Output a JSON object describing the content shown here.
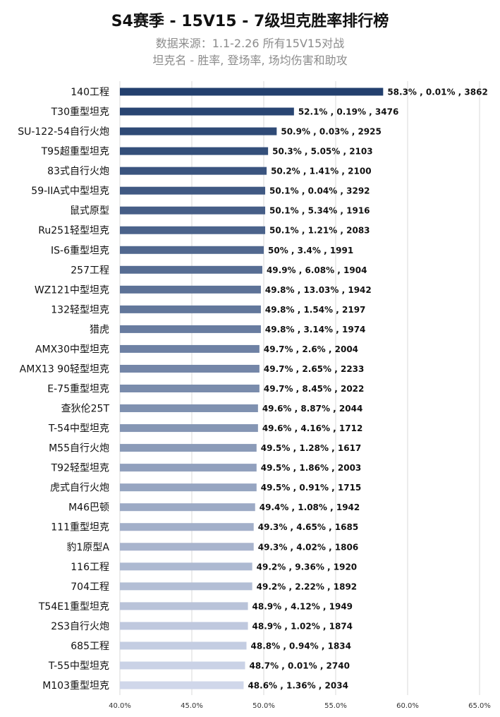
{
  "chart_data": {
    "type": "bar",
    "orientation": "horizontal",
    "title": "S4赛季 - 15V15 - 7级坦克胜率排行榜",
    "subtitle_lines": [
      "数据来源：1.1-2.26 所有15V15对战",
      "坦克名 - 胜率, 登场率, 场均伤害和助攻"
    ],
    "xlim": [
      40,
      65
    ],
    "x_ticks": [
      40,
      45,
      50,
      55,
      60,
      65
    ],
    "x_tick_labels": [
      "40.0%",
      "45.0%",
      "50.0%",
      "55.0%",
      "60.0%",
      "65.0%"
    ],
    "grid": "vertical",
    "categories": [
      "140工程",
      "T30重型坦克",
      "SU-122-54自行火炮",
      "T95超重型坦克",
      "83式自行火炮",
      "59-IIA式中型坦克",
      "鼠式原型",
      "Ru251轻型坦克",
      "IS-6重型坦克",
      "257工程",
      "WZ121中型坦克",
      "132轻型坦克",
      "猎虎",
      "AMX30中型坦克",
      "AMX13 90轻型坦克",
      "E-75重型坦克",
      "查狄伦25T",
      "T-54中型坦克",
      "M55自行火炮",
      "T92轻型坦克",
      "虎式自行火炮",
      "M46巴顿",
      "111重型坦克",
      "豹1原型A",
      "116工程",
      "704工程",
      "T54E1重型坦克",
      "2S3自行火炮",
      "685工程",
      "T-55中型坦克",
      "M103重型坦克"
    ],
    "values": [
      58.3,
      52.1,
      50.9,
      50.3,
      50.2,
      50.1,
      50.1,
      50.1,
      50.0,
      49.9,
      49.8,
      49.8,
      49.8,
      49.7,
      49.7,
      49.7,
      49.6,
      49.6,
      49.5,
      49.5,
      49.5,
      49.4,
      49.3,
      49.3,
      49.2,
      49.2,
      48.9,
      48.9,
      48.8,
      48.7,
      48.6
    ],
    "data_labels": [
      "58.3% , 0.01% , 3862",
      "52.1% , 0.19% , 3476",
      "50.9% , 0.03% , 2925",
      "50.3% , 5.05% , 2103",
      "50.2% , 1.41% , 2100",
      "50.1% , 0.04% , 3292",
      "50.1% , 5.34% , 1916",
      "50.1% , 1.21% , 2083",
      "50% , 3.4% , 1991",
      "49.9% , 6.08% , 1904",
      "49.8% , 13.03% , 1942",
      "49.8% , 1.54% , 2197",
      "49.8% , 3.14% , 1974",
      "49.7% , 2.6% , 2004",
      "49.7% , 2.65% , 2233",
      "49.7% , 8.45% , 2022",
      "49.6% , 8.87% , 2044",
      "49.6% , 4.16% , 1712",
      "49.5% , 1.28% , 1617",
      "49.5% , 1.86% , 2003",
      "49.5% , 0.91% , 1715",
      "49.4% , 1.08% , 1942",
      "49.3% , 4.65% , 1685",
      "49.3% , 4.02% , 1806",
      "49.2% , 9.36% , 1920",
      "49.2% , 2.22% , 1892",
      "48.9% , 4.12% , 1949",
      "48.9% , 1.02% , 1874",
      "48.8% , 0.94% , 1834",
      "48.7% , 0.01% , 2740",
      "48.6% , 1.36% , 2034"
    ],
    "colors": {
      "bar_start": "#23406e",
      "bar_end": "#d0d7ea",
      "grid": "#d9d9d9",
      "text": "#111111"
    }
  }
}
